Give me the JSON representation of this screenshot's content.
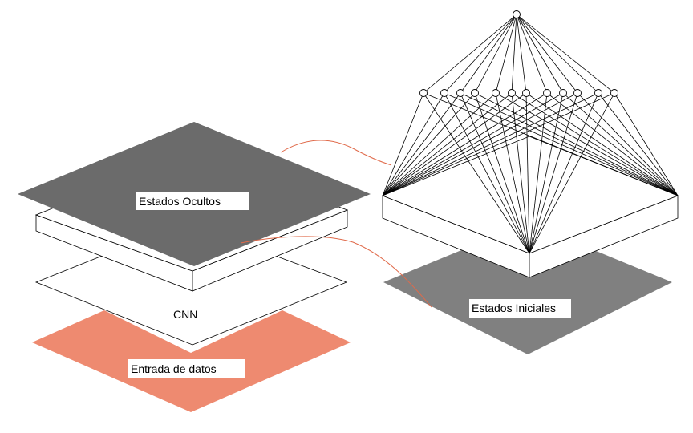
{
  "labels": {
    "hidden_states": "Estados Ocultos",
    "cnn": "CNN",
    "input": "Entrada de datos",
    "initial_states": "Estados Iniciales"
  },
  "colors": {
    "hidden_states_fill": "#6b6b6b",
    "initial_states_fill": "#808080",
    "input_fill": "#ee8a70",
    "connector": "#e06a4a",
    "stroke": "#000000"
  }
}
